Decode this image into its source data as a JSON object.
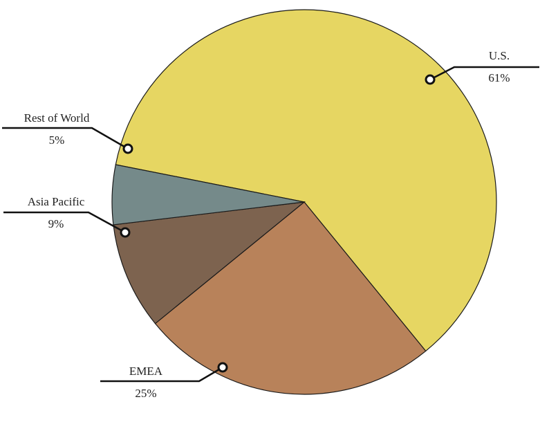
{
  "chart_data": {
    "type": "pie",
    "start_angle_deg": 191.2,
    "direction": "clockwise",
    "slices": [
      {
        "label": "U.S.",
        "value": 61,
        "value_label": "61%",
        "color": "#e6d662"
      },
      {
        "label": "EMEA",
        "value": 25,
        "value_label": "25%",
        "color": "#b8825a"
      },
      {
        "label": "Asia Pacific",
        "value": 9,
        "value_label": "9%",
        "color": "#7d634f"
      },
      {
        "label": "Rest of World",
        "value": 5,
        "value_label": "5%",
        "color": "#758a8a"
      }
    ],
    "legend": "none",
    "slice_border_color": "#1a1a1a",
    "callout_color": "#111111"
  }
}
